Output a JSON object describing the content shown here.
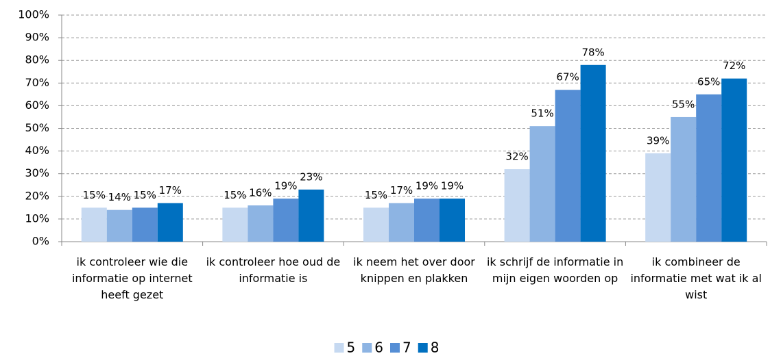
{
  "chart_data": {
    "type": "bar",
    "categories": [
      "ik controleer wie die informatie op internet heeft gezet",
      "ik controleer hoe oud de informatie is",
      "ik neem het over door knippen en plakken",
      "ik schrijf de informatie in mijn eigen woorden op",
      "ik combineer de informatie met wat ik al wist"
    ],
    "series": [
      {
        "name": "5",
        "color": "#c6d9f1",
        "values": [
          15,
          15,
          15,
          32,
          39
        ],
        "value_labels": [
          "15%",
          "15%",
          "15%",
          "32%",
          "39%"
        ]
      },
      {
        "name": "6",
        "color": "#8db4e3",
        "values": [
          14,
          16,
          17,
          51,
          55
        ],
        "value_labels": [
          "14%",
          "16%",
          "17%",
          "51%",
          "55%"
        ]
      },
      {
        "name": "7",
        "color": "#558ed5",
        "values": [
          15,
          19,
          19,
          67,
          65
        ],
        "value_labels": [
          "15%",
          "19%",
          "19%",
          "67%",
          "65%"
        ]
      },
      {
        "name": "8",
        "color": "#0070c0",
        "values": [
          17,
          23,
          19,
          78,
          72
        ],
        "value_labels": [
          "17%",
          "23%",
          "19%",
          "78%",
          "72%"
        ]
      }
    ],
    "ylim": [
      0,
      100
    ],
    "yticks": [
      {
        "value": 0,
        "label": "0%"
      },
      {
        "value": 10,
        "label": "10%"
      },
      {
        "value": 20,
        "label": "20%"
      },
      {
        "value": 30,
        "label": "30%"
      },
      {
        "value": 40,
        "label": "40%"
      },
      {
        "value": 50,
        "label": "50%"
      },
      {
        "value": 60,
        "label": "60%"
      },
      {
        "value": 70,
        "label": "70%"
      },
      {
        "value": 80,
        "label": "80%"
      },
      {
        "value": 90,
        "label": "90%"
      },
      {
        "value": 100,
        "label": "100%"
      }
    ],
    "grid": true,
    "legend": "bottom"
  }
}
